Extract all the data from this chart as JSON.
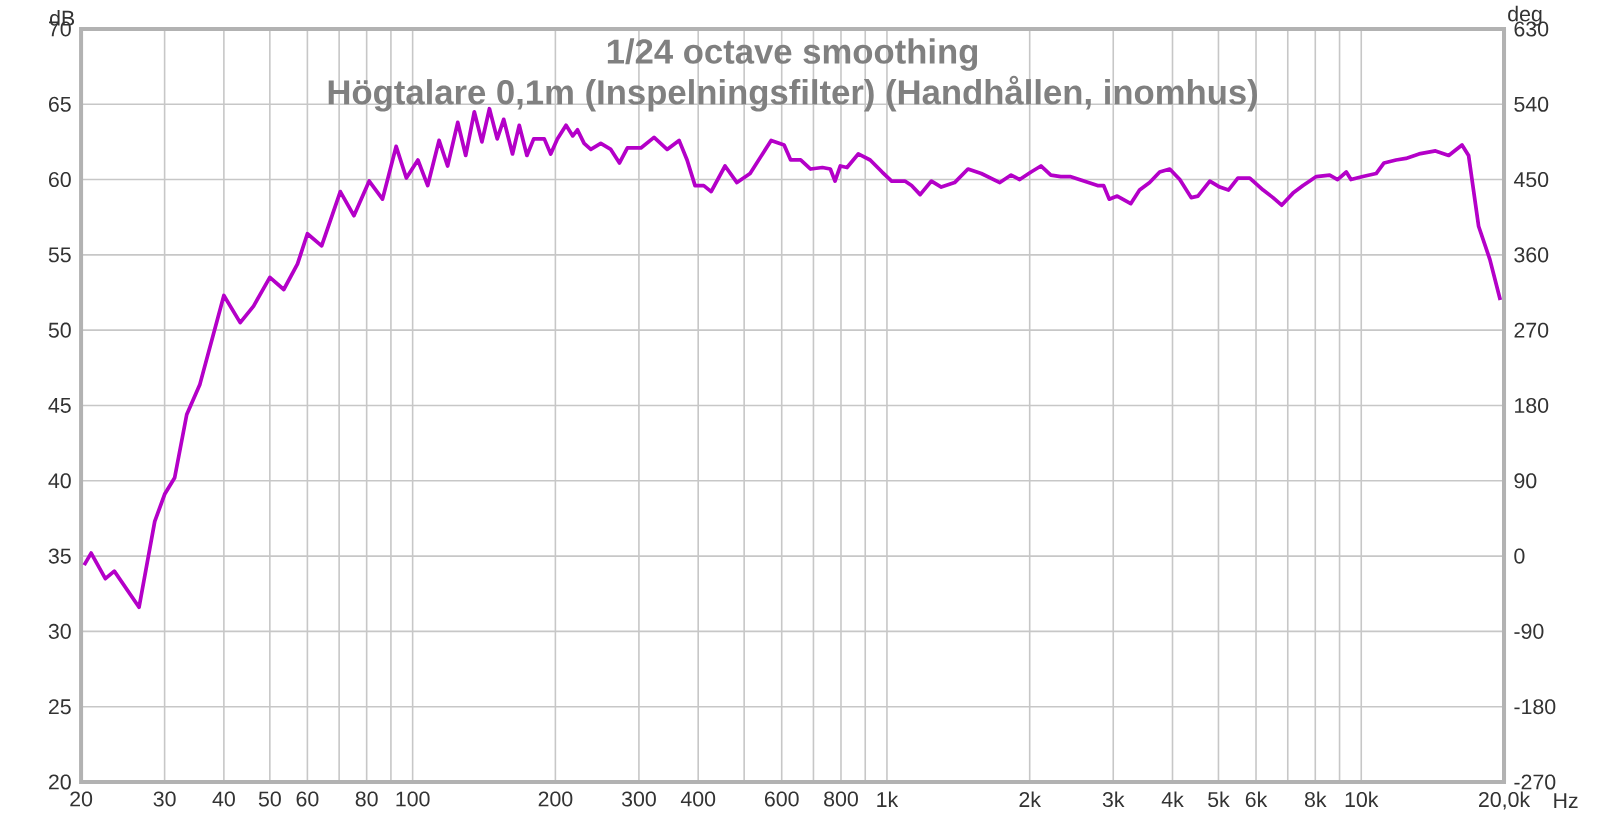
{
  "chart_data": {
    "type": "line",
    "title": "1/24 octave smoothing",
    "subtitle": "Högtalare 0,1m (Inspelningsfilter) (Handhållen, inomhus)",
    "xlabel": "Hz",
    "ylabel": "dB",
    "y2label": "deg",
    "log": "x",
    "grid": true,
    "xlim": [
      20,
      20000
    ],
    "ylim": [
      20,
      70
    ],
    "y2lim": [
      -270,
      630
    ],
    "xticks": [
      20,
      30,
      40,
      50,
      60,
      {
        "value": 70,
        "label": null
      },
      80,
      {
        "value": 90,
        "label": null
      },
      100,
      200,
      300,
      400,
      {
        "value": 500,
        "label": null
      },
      600,
      {
        "value": 700,
        "label": null
      },
      800,
      {
        "value": 900,
        "label": null
      },
      {
        "value": 1000,
        "label": "1k"
      },
      {
        "value": 2000,
        "label": "2k"
      },
      {
        "value": 3000,
        "label": "3k"
      },
      {
        "value": 4000,
        "label": "4k"
      },
      {
        "value": 5000,
        "label": "5k"
      },
      {
        "value": 6000,
        "label": "6k"
      },
      {
        "value": 7000,
        "label": null
      },
      {
        "value": 8000,
        "label": "8k"
      },
      {
        "value": 9000,
        "label": null
      },
      {
        "value": 10000,
        "label": "10k"
      },
      {
        "value": 20000,
        "label": "20,0k"
      }
    ],
    "yticks": [
      20,
      25,
      30,
      35,
      40,
      45,
      50,
      55,
      60,
      65,
      70
    ],
    "y2ticks": [
      -270,
      -180,
      -90,
      0,
      90,
      180,
      270,
      360,
      450,
      540,
      630
    ],
    "x": [
      20.3,
      21,
      22.5,
      23.5,
      26.5,
      28.6,
      30,
      31.5,
      33.4,
      35.6,
      40,
      43.3,
      46.2,
      50,
      53.5,
      57.2,
      60,
      64.3,
      70.4,
      75.2,
      81,
      86.4,
      92.3,
      97,
      102.6,
      107.6,
      113.7,
      118.5,
      124.5,
      129.4,
      134.9,
      140,
      145.2,
      150.8,
      155.6,
      162.4,
      167.8,
      174.2,
      180,
      189.5,
      195.5,
      201.9,
      210.6,
      217.6,
      222.6,
      229.9,
      237.5,
      249.3,
      261.7,
      273,
      283.7,
      302.9,
      322.9,
      344,
      364.6,
      379,
      394,
      411,
      426,
      455.7,
      482.8,
      514.6,
      570,
      607,
      626.7,
      657.7,
      690.4,
      731,
      759.8,
      777.3,
      797.6,
      823.8,
      870,
      921.8,
      977,
      1023,
      1091,
      1127,
      1175,
      1241,
      1302,
      1389,
      1482,
      1581,
      1730,
      1827,
      1905,
      2013,
      2112,
      2216,
      2325,
      2433,
      2601,
      2780,
      2863,
      2942,
      3059,
      3266,
      3409,
      3580,
      3759,
      3947,
      4144,
      4380,
      4525,
      4794,
      5032,
      5248,
      5493,
      5820,
      6212,
      6517,
      6795,
      7180,
      7539,
      8042,
      8578,
      8915,
      9300,
      9513,
      10080,
      10750,
      11170,
      11840,
      12420,
      13240,
      14340,
      15290,
      16310,
      16840,
      17680,
      18670,
      19640
    ],
    "series": [
      {
        "color": "#b400c8",
        "values": [
          34.4,
          35.2,
          33.5,
          34.0,
          31.6,
          37.3,
          39.1,
          40.2,
          44.4,
          46.4,
          52.3,
          50.5,
          51.6,
          53.5,
          52.7,
          54.4,
          56.4,
          55.6,
          59.2,
          57.6,
          59.9,
          58.7,
          62.2,
          60.1,
          61.3,
          59.6,
          62.6,
          60.9,
          63.8,
          61.6,
          64.5,
          62.5,
          64.7,
          62.7,
          64.0,
          61.7,
          63.6,
          61.6,
          62.7,
          62.7,
          61.7,
          62.7,
          63.6,
          62.9,
          63.3,
          62.4,
          62.0,
          62.4,
          62.0,
          61.1,
          62.1,
          62.1,
          62.8,
          62.0,
          62.6,
          61.3,
          59.6,
          59.6,
          59.2,
          60.9,
          59.8,
          60.4,
          62.6,
          62.3,
          61.3,
          61.3,
          60.7,
          60.8,
          60.7,
          59.9,
          60.9,
          60.8,
          61.7,
          61.3,
          60.5,
          59.9,
          59.9,
          59.6,
          59.0,
          59.9,
          59.5,
          59.8,
          60.7,
          60.4,
          59.8,
          60.3,
          60.0,
          60.5,
          60.9,
          60.3,
          60.2,
          60.2,
          59.9,
          59.6,
          59.6,
          58.7,
          58.9,
          58.4,
          59.3,
          59.8,
          60.5,
          60.7,
          60.0,
          58.8,
          58.9,
          59.9,
          59.5,
          59.3,
          60.1,
          60.1,
          59.3,
          58.8,
          58.3,
          59.1,
          59.6,
          60.2,
          60.3,
          60.0,
          60.5,
          60.0,
          60.2,
          60.4,
          61.1,
          61.3,
          61.4,
          61.7,
          61.9,
          61.6,
          62.3,
          61.6,
          56.9,
          54.7,
          52.0
        ]
      }
    ]
  }
}
